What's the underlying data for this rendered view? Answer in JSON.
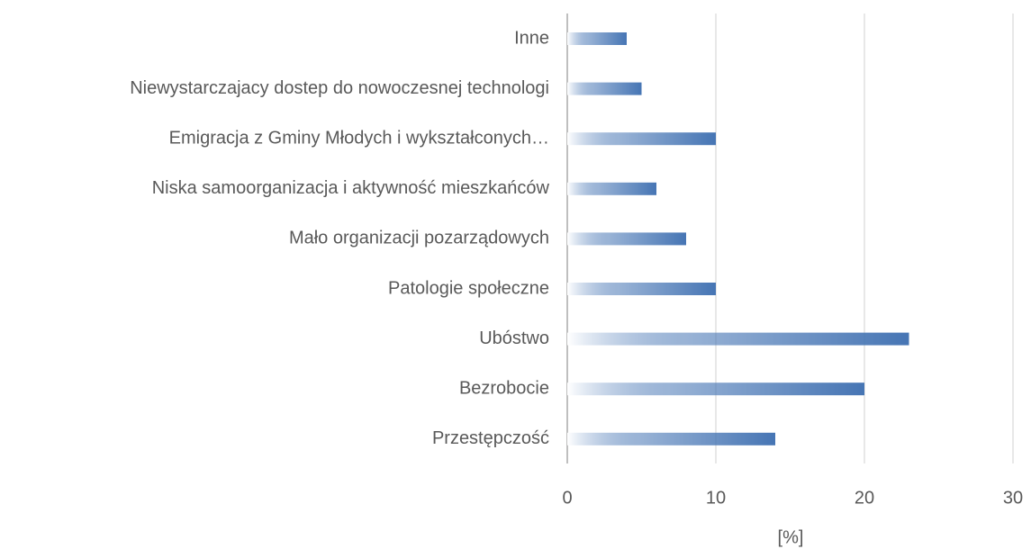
{
  "chart_data": {
    "type": "bar",
    "orientation": "horizontal",
    "categories": [
      "Inne",
      "Niewystarczajacy dostep do nowoczesnej technologi",
      "Emigracja z Gminy Młodych i wykształconych…",
      "Niska samoorganizacja i aktywność mieszkańców",
      "Mało organizacji pozarządowych",
      "Patologie społeczne",
      "Ubóstwo",
      "Bezrobocie",
      "Przestępczość"
    ],
    "values": [
      4,
      5,
      10,
      6,
      8,
      10,
      23,
      20,
      14
    ],
    "color": "#4675b4",
    "x_label": "[%]",
    "xlim": [
      0,
      30
    ],
    "xticks": [
      0,
      10,
      20,
      30
    ],
    "grid": true
  }
}
